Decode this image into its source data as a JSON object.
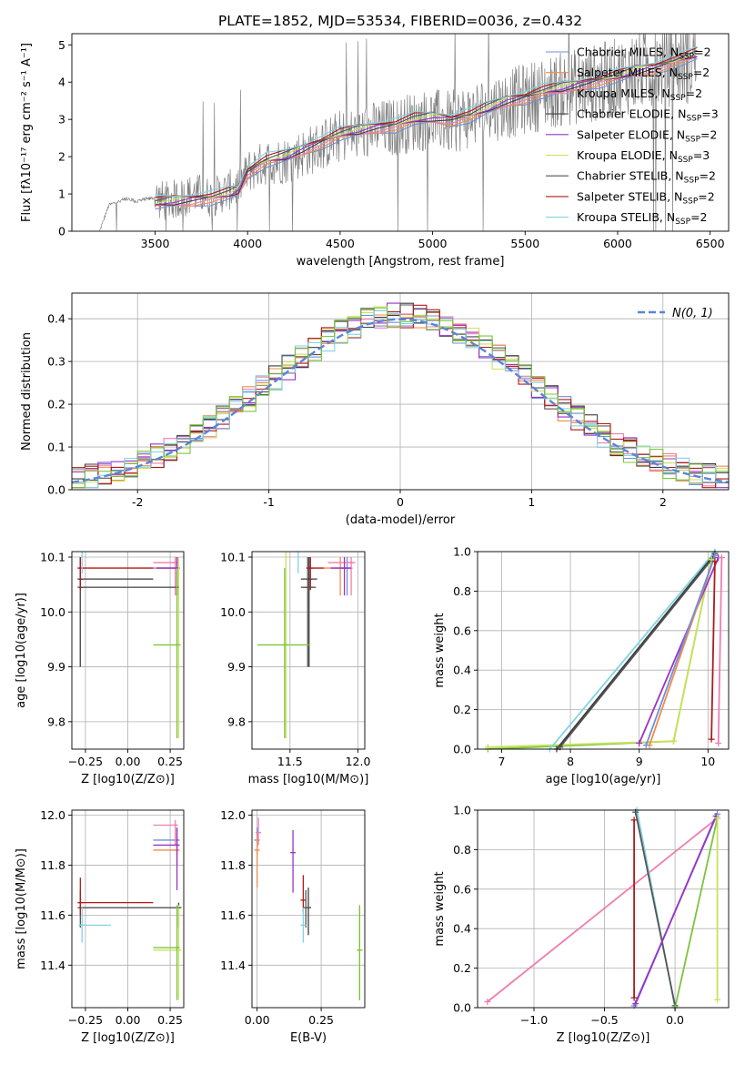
{
  "figure": {
    "title": "PLATE=1852, MJD=53534, FIBERID=0036, z=0.432"
  },
  "colors": {
    "data": "#808080",
    "model_palette": [
      "#6f8fdc",
      "#f08c4a",
      "#f07db0",
      "#3c3c3c",
      "#9a32c8",
      "#c9e25a",
      "#555555",
      "#b01a1a",
      "#80d4e4",
      "#7cc43c"
    ]
  },
  "chart_data": [
    {
      "id": "spectrum",
      "type": "line",
      "xlabel": "wavelength [Angstrom, rest frame]",
      "ylabel": "Flux [fλ10⁻¹⁷ erg cm⁻² s⁻¹ A⁻¹]",
      "xlim": [
        3050,
        6600
      ],
      "ylim": [
        0,
        5.3
      ],
      "xticks": [
        3500,
        4000,
        4500,
        5000,
        5500,
        6000,
        6500
      ],
      "yticks": [
        0,
        1,
        2,
        3,
        4,
        5
      ],
      "grid": false,
      "legend_position": "upper-right",
      "data_series": {
        "name": "",
        "color": "#808080",
        "x": [
          3200,
          3250,
          3300,
          3350,
          3400,
          3450,
          3500,
          3550,
          3600,
          3650,
          3700,
          3750,
          3800,
          3850,
          3900,
          3950,
          4000,
          4100,
          4200,
          4300,
          4400,
          4500,
          4600,
          4700,
          4800,
          4900,
          5000,
          5100,
          5200,
          5300,
          5400,
          5500,
          5600,
          5700,
          5800,
          5900,
          6000,
          6100,
          6200,
          6300,
          6400,
          6430
        ],
        "y": [
          0.0,
          0.7,
          0.8,
          0.85,
          0.8,
          0.85,
          0.9,
          0.8,
          0.85,
          0.9,
          1.0,
          1.0,
          0.9,
          1.0,
          1.1,
          1.2,
          1.6,
          1.85,
          1.9,
          2.1,
          2.3,
          2.55,
          2.6,
          2.75,
          2.8,
          2.95,
          3.0,
          2.9,
          3.1,
          3.3,
          3.4,
          3.55,
          3.7,
          3.8,
          3.9,
          4.0,
          4.1,
          4.3,
          4.4,
          4.5,
          4.6,
          4.7
        ]
      },
      "model_series": [
        {
          "name": "Chabrier MILES, N_SSP=2",
          "label_base": "Chabrier MILES, N",
          "label_sub": "SSP",
          "label_suffix": "=2",
          "color": "#6f8fdc"
        },
        {
          "name": "Salpeter MILES, N_SSP=2",
          "label_base": "Salpeter MILES, N",
          "label_sub": "SSP",
          "label_suffix": "=2",
          "color": "#f08c4a"
        },
        {
          "name": "Kroupa MILES, N_SSP=2",
          "label_base": "Kroupa MILES, N",
          "label_sub": "SSP",
          "label_suffix": "=2",
          "color": "#f07db0"
        },
        {
          "name": "Chabrier ELODIE, N_SSP=3",
          "label_base": "Chabrier ELODIE, N",
          "label_sub": "SSP",
          "label_suffix": "=3",
          "color": "#3c3c3c"
        },
        {
          "name": "Salpeter ELODIE, N_SSP=2",
          "label_base": "Salpeter ELODIE, N",
          "label_sub": "SSP",
          "label_suffix": "=2",
          "color": "#9a32c8"
        },
        {
          "name": "Kroupa ELODIE, N_SSP=3",
          "label_base": "Kroupa ELODIE, N",
          "label_sub": "SSP",
          "label_suffix": "=3",
          "color": "#c9e25a"
        },
        {
          "name": "Chabrier STELIB, N_SSP=2",
          "label_base": "Chabrier STELIB, N",
          "label_sub": "SSP",
          "label_suffix": "=2",
          "color": "#555555"
        },
        {
          "name": "Salpeter STELIB, N_SSP=2",
          "label_base": "Salpeter STELIB, N",
          "label_sub": "SSP",
          "label_suffix": "=2",
          "color": "#b01a1a"
        },
        {
          "name": "Kroupa STELIB, N_SSP=2",
          "label_base": "Kroupa STELIB, N",
          "label_sub": "SSP",
          "label_suffix": "=2",
          "color": "#80d4e4"
        }
      ],
      "model_curve": {
        "x": [
          3500,
          3600,
          3700,
          3800,
          3900,
          3950,
          4000,
          4100,
          4200,
          4300,
          4400,
          4500,
          4600,
          4700,
          4800,
          4900,
          5000,
          5100,
          5200,
          5300,
          5400,
          5500,
          5600,
          5700,
          5800,
          5900,
          6000,
          6100,
          6200,
          6300,
          6430
        ],
        "y": [
          0.75,
          0.8,
          0.85,
          0.9,
          1.0,
          1.1,
          1.6,
          1.9,
          2.0,
          2.2,
          2.4,
          2.6,
          2.7,
          2.8,
          2.85,
          3.0,
          3.05,
          3.0,
          3.1,
          3.3,
          3.5,
          3.6,
          3.75,
          3.85,
          3.95,
          4.05,
          4.15,
          4.3,
          4.4,
          4.55,
          4.75
        ]
      }
    },
    {
      "id": "residual-histogram",
      "type": "bar",
      "xlabel": "(data-model)/error",
      "ylabel": "Normed distribution",
      "xlim": [
        -2.5,
        2.5
      ],
      "ylim": [
        0,
        0.46
      ],
      "xticks": [
        -2,
        -1,
        0,
        1,
        2
      ],
      "yticks": [
        0.0,
        0.1,
        0.2,
        0.3,
        0.4
      ],
      "grid": true,
      "bin_width": 0.1,
      "bin_start": -2.5,
      "reference_curve": {
        "name": "N(0, 1)",
        "mean": 0,
        "sigma": 1,
        "color": "#5b84d8",
        "dashed": true
      },
      "legend_position": "upper-right"
    },
    {
      "id": "age-vs-Z",
      "type": "scatter",
      "xlabel": "Z [log10(Z/Z⊙)]",
      "ylabel": "age [log10(age/yr)]",
      "xlim": [
        -0.33,
        0.33
      ],
      "ylim": [
        9.75,
        10.11
      ],
      "xticks": [
        -0.25,
        0.0,
        0.25
      ],
      "xtick_labels": [
        "−0.25",
        "0.00",
        "0.25"
      ],
      "yticks": [
        9.8,
        9.9,
        10.0,
        10.1
      ],
      "grid": true,
      "points": [
        {
          "color": "#6f8fdc",
          "x": 0.29,
          "y": 10.08,
          "x_lo": 0.15,
          "x_hi": 0.3,
          "y_lo": 10.03,
          "y_hi": 10.1
        },
        {
          "color": "#f08c4a",
          "x": 0.29,
          "y": 10.08,
          "x_lo": 0.16,
          "x_hi": 0.3,
          "y_lo": 10.03,
          "y_hi": 10.1
        },
        {
          "color": "#f07db0",
          "x": 0.28,
          "y": 10.09,
          "x_lo": 0.15,
          "x_hi": 0.29,
          "y_lo": 10.03,
          "y_hi": 10.1
        },
        {
          "color": "#3c3c3c",
          "x": -0.28,
          "y": 10.06,
          "x_lo": -0.29,
          "x_hi": 0.15,
          "y_lo": 9.9,
          "y_hi": 10.1
        },
        {
          "color": "#9a32c8",
          "x": 0.29,
          "y": 10.08,
          "x_lo": 0.17,
          "x_hi": 0.3,
          "y_lo": 10.03,
          "y_hi": 10.1
        },
        {
          "color": "#c9e25a",
          "x": 0.3,
          "y": 9.94,
          "x_lo": 0.16,
          "x_hi": 0.31,
          "y_lo": 9.77,
          "y_hi": 10.1
        },
        {
          "color": "#555555",
          "x": -0.28,
          "y": 10.045,
          "x_lo": -0.29,
          "x_hi": 0.3,
          "y_lo": 9.9,
          "y_hi": 10.1
        },
        {
          "color": "#b01a1a",
          "x": -0.28,
          "y": 10.08,
          "x_lo": -0.29,
          "x_hi": 0.15,
          "y_lo": 10.04,
          "y_hi": 10.1
        },
        {
          "color": "#80d4e4",
          "x": -0.27,
          "y": 10.115,
          "x_lo": -0.29,
          "x_hi": -0.1,
          "y_lo": 10.07,
          "y_hi": 10.13
        },
        {
          "color": "#7cc43c",
          "x": 0.29,
          "y": 9.94,
          "x_lo": 0.15,
          "x_hi": 0.3,
          "y_lo": 9.77,
          "y_hi": 10.08
        }
      ]
    },
    {
      "id": "age-vs-mass",
      "type": "scatter",
      "xlabel": "mass [log10(M/M⊙)]",
      "ylabel": "",
      "xlim": [
        11.22,
        12.05
      ],
      "ylim": [
        9.75,
        10.11
      ],
      "xticks": [
        11.5,
        12.0
      ],
      "xtick_labels": [
        "11.5",
        "12.0"
      ],
      "yticks": [
        9.8,
        9.9,
        10.0,
        10.1
      ],
      "grid": true,
      "points": [
        {
          "color": "#6f8fdc",
          "x": 11.92,
          "y": 10.08,
          "x_lo": 11.86,
          "x_hi": 11.96,
          "y_lo": 10.03,
          "y_hi": 10.1
        },
        {
          "color": "#f08c4a",
          "x": 11.87,
          "y": 10.08,
          "x_lo": 11.75,
          "x_hi": 11.93,
          "y_lo": 10.03,
          "y_hi": 10.1
        },
        {
          "color": "#f07db0",
          "x": 11.95,
          "y": 10.09,
          "x_lo": 11.78,
          "x_hi": 11.98,
          "y_lo": 10.03,
          "y_hi": 10.1
        },
        {
          "color": "#3c3c3c",
          "x": 11.64,
          "y": 10.06,
          "x_lo": 11.58,
          "x_hi": 11.7,
          "y_lo": 9.9,
          "y_hi": 10.1
        },
        {
          "color": "#9a32c8",
          "x": 11.9,
          "y": 10.08,
          "x_lo": 11.8,
          "x_hi": 11.95,
          "y_lo": 10.03,
          "y_hi": 10.1
        },
        {
          "color": "#c9e25a",
          "x": 11.47,
          "y": 9.94,
          "x_lo": 11.26,
          "x_hi": 11.64,
          "y_lo": 9.77,
          "y_hi": 10.11
        },
        {
          "color": "#555555",
          "x": 11.63,
          "y": 10.045,
          "x_lo": 11.58,
          "x_hi": 11.69,
          "y_lo": 9.9,
          "y_hi": 10.1
        },
        {
          "color": "#b01a1a",
          "x": 11.65,
          "y": 10.08,
          "x_lo": 11.62,
          "x_hi": 11.75,
          "y_lo": 10.04,
          "y_hi": 10.1
        },
        {
          "color": "#80d4e4",
          "x": 11.56,
          "y": 10.115,
          "x_lo": 11.52,
          "x_hi": 11.63,
          "y_lo": 10.07,
          "y_hi": 10.14
        },
        {
          "color": "#7cc43c",
          "x": 11.46,
          "y": 9.94,
          "x_lo": 11.26,
          "x_hi": 11.64,
          "y_lo": 9.77,
          "y_hi": 10.08
        }
      ]
    },
    {
      "id": "massweight-vs-age",
      "type": "line",
      "xlabel": "age [log10(age/yr)]",
      "ylabel": "mass weight",
      "xlim": [
        6.65,
        10.3
      ],
      "ylim": [
        0,
        1.0
      ],
      "xticks": [
        7,
        8,
        9,
        10
      ],
      "yticks": [
        0.0,
        0.2,
        0.4,
        0.6,
        0.8,
        1.0
      ],
      "grid": true,
      "series": [
        {
          "color": "#7cc43c",
          "x": [
            6.8,
            9.5,
            10.05
          ],
          "y": [
            0.0,
            0.04,
            0.96
          ]
        },
        {
          "color": "#c9e25a",
          "x": [
            6.8,
            9.5,
            10.05
          ],
          "y": [
            0.01,
            0.04,
            0.96
          ]
        },
        {
          "color": "#80d4e4",
          "x": [
            7.7,
            10.1
          ],
          "y": [
            0.0,
            1.0
          ]
        },
        {
          "color": "#3c3c3c",
          "x": [
            7.8,
            10.1
          ],
          "y": [
            0.0,
            0.99
          ]
        },
        {
          "color": "#555555",
          "x": [
            7.85,
            10.1
          ],
          "y": [
            0.01,
            0.98
          ]
        },
        {
          "color": "#9a32c8",
          "x": [
            9.0,
            10.15
          ],
          "y": [
            0.03,
            0.97
          ]
        },
        {
          "color": "#f08c4a",
          "x": [
            9.15,
            10.1
          ],
          "y": [
            0.02,
            0.98
          ]
        },
        {
          "color": "#6f8fdc",
          "x": [
            9.1,
            10.1
          ],
          "y": [
            0.02,
            0.98
          ]
        },
        {
          "color": "#b01a1a",
          "x": [
            10.05,
            10.1
          ],
          "y": [
            0.05,
            0.95
          ]
        },
        {
          "color": "#f07db0",
          "x": [
            10.15,
            10.2
          ],
          "y": [
            0.03,
            0.97
          ]
        }
      ]
    },
    {
      "id": "mass-vs-Z",
      "type": "scatter",
      "xlabel": "Z [log10(Z/Z⊙)]",
      "ylabel": "mass [log10(M/M⊙)]",
      "xlim": [
        -0.33,
        0.33
      ],
      "ylim": [
        11.23,
        12.02
      ],
      "xticks": [
        -0.25,
        0.0,
        0.25
      ],
      "xtick_labels": [
        "−0.25",
        "0.00",
        "0.25"
      ],
      "yticks": [
        11.4,
        11.6,
        11.8,
        12.0
      ],
      "grid": true,
      "points": [
        {
          "color": "#6f8fdc",
          "x": 0.29,
          "y": 11.9,
          "x_lo": 0.15,
          "x_hi": 0.3,
          "y_lo": 11.84,
          "y_hi": 11.95
        },
        {
          "color": "#f08c4a",
          "x": 0.29,
          "y": 11.86,
          "x_lo": 0.15,
          "x_hi": 0.3,
          "y_lo": 11.8,
          "y_hi": 11.92
        },
        {
          "color": "#f07db0",
          "x": 0.28,
          "y": 11.96,
          "x_lo": 0.15,
          "x_hi": 0.29,
          "y_lo": 11.88,
          "y_hi": 11.98
        },
        {
          "color": "#3c3c3c",
          "x": 0.3,
          "y": 11.63,
          "x_lo": -0.29,
          "x_hi": 0.31,
          "y_lo": 11.55,
          "y_hi": 11.65
        },
        {
          "color": "#9a32c8",
          "x": 0.29,
          "y": 11.88,
          "x_lo": 0.15,
          "x_hi": 0.3,
          "y_lo": 11.7,
          "y_hi": 11.95
        },
        {
          "color": "#c9e25a",
          "x": 0.3,
          "y": 11.46,
          "x_lo": 0.15,
          "x_hi": 0.31,
          "y_lo": 11.26,
          "y_hi": 11.64
        },
        {
          "color": "#555555",
          "x": -0.28,
          "y": 11.63,
          "x_lo": -0.29,
          "x_hi": 0.3,
          "y_lo": 11.55,
          "y_hi": 11.7
        },
        {
          "color": "#b01a1a",
          "x": -0.28,
          "y": 11.65,
          "x_lo": -0.29,
          "x_hi": 0.15,
          "y_lo": 11.6,
          "y_hi": 11.75
        },
        {
          "color": "#80d4e4",
          "x": -0.27,
          "y": 11.56,
          "x_lo": -0.29,
          "x_hi": -0.1,
          "y_lo": 11.49,
          "y_hi": 11.63
        },
        {
          "color": "#7cc43c",
          "x": 0.29,
          "y": 11.47,
          "x_lo": 0.15,
          "x_hi": 0.3,
          "y_lo": 11.26,
          "y_hi": 11.64
        }
      ]
    },
    {
      "id": "mass-vs-ebv",
      "type": "scatter",
      "xlabel": "E(B-V)",
      "ylabel": "",
      "xlim": [
        -0.02,
        0.42
      ],
      "ylim": [
        11.23,
        12.02
      ],
      "xticks": [
        0.0,
        0.25
      ],
      "xtick_labels": [
        "0.00",
        "0.25"
      ],
      "yticks": [
        11.4,
        11.6,
        11.8,
        12.0
      ],
      "grid": true,
      "points": [
        {
          "color": "#6f8fdc",
          "x": 0.0,
          "y": 11.9,
          "y_lo": 11.84,
          "y_hi": 11.95
        },
        {
          "color": "#f08c4a",
          "x": 0.0,
          "y": 11.86,
          "y_lo": 11.71,
          "y_hi": 11.92
        },
        {
          "color": "#f07db0",
          "x": 0.005,
          "y": 11.93,
          "y_lo": 11.88,
          "y_hi": 11.99
        },
        {
          "color": "#3c3c3c",
          "x": 0.2,
          "y": 11.63,
          "y_lo": 11.52,
          "y_hi": 11.71
        },
        {
          "color": "#9a32c8",
          "x": 0.14,
          "y": 11.85,
          "y_lo": 11.69,
          "y_hi": 11.94
        },
        {
          "color": "#c9e25a",
          "x": 0.4,
          "y": 11.46,
          "y_lo": 11.26,
          "y_hi": 11.64
        },
        {
          "color": "#555555",
          "x": 0.19,
          "y": 11.63,
          "y_lo": 11.55,
          "y_hi": 11.7
        },
        {
          "color": "#b01a1a",
          "x": 0.18,
          "y": 11.66,
          "y_lo": 11.61,
          "y_hi": 11.76
        },
        {
          "color": "#80d4e4",
          "x": 0.18,
          "y": 11.56,
          "y_lo": 11.49,
          "y_hi": 11.63
        },
        {
          "color": "#7cc43c",
          "x": 0.4,
          "y": 11.46,
          "y_lo": 11.26,
          "y_hi": 11.64
        }
      ]
    },
    {
      "id": "massweight-vs-Z",
      "type": "line",
      "xlabel": "Z [log10(Z/Z⊙)]",
      "ylabel": "mass weight",
      "xlim": [
        -1.4,
        0.38
      ],
      "ylim": [
        0,
        1.0
      ],
      "xticks": [
        -1.0,
        -0.5,
        0.0
      ],
      "xtick_labels": [
        "−1.0",
        "−0.5",
        "0.0"
      ],
      "yticks": [
        0.0,
        0.2,
        0.4,
        0.6,
        0.8,
        1.0
      ],
      "grid": true,
      "series": [
        {
          "color": "#f07db0",
          "x": [
            -1.33,
            0.3
          ],
          "y": [
            0.03,
            0.96
          ]
        },
        {
          "color": "#80d4e4",
          "x": [
            -0.27,
            0.0
          ],
          "y": [
            1.0,
            0.0
          ]
        },
        {
          "color": "#555555",
          "x": [
            -0.28,
            0.0
          ],
          "y": [
            0.99,
            0.01
          ]
        },
        {
          "color": "#b01a1a",
          "x": [
            -0.29,
            -0.29
          ],
          "y": [
            0.05,
            0.95
          ]
        },
        {
          "color": "#6f8fdc",
          "x": [
            -0.29,
            0.3
          ],
          "y": [
            0.01,
            0.98
          ]
        },
        {
          "color": "#9a32c8",
          "x": [
            -0.28,
            0.29
          ],
          "y": [
            0.02,
            0.97
          ]
        },
        {
          "color": "#7cc43c",
          "x": [
            0.0,
            0.3
          ],
          "y": [
            0.0,
            0.96
          ]
        },
        {
          "color": "#c9e25a",
          "x": [
            0.3,
            0.3
          ],
          "y": [
            0.04,
            0.96
          ]
        }
      ]
    }
  ]
}
